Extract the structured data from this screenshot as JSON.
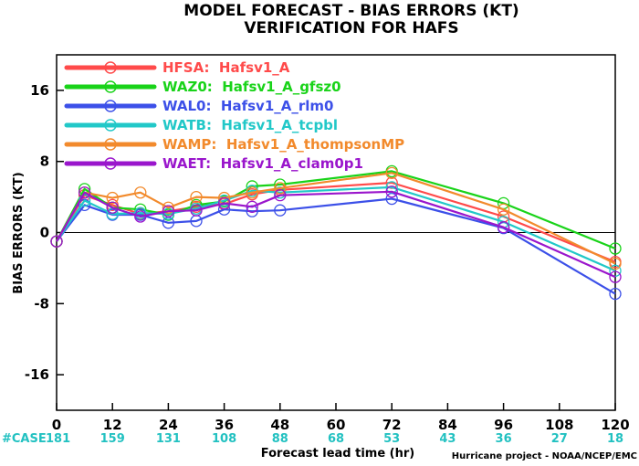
{
  "chart_data": {
    "type": "line",
    "title": "MODEL FORECAST - BIAS ERRORS (KT)",
    "subtitle": "VERIFICATION FOR HAFS",
    "xlabel": "Forecast lead time (hr)",
    "ylabel": "BIAS ERRORS (KT)",
    "x_ticks": [
      0,
      12,
      24,
      36,
      48,
      60,
      72,
      84,
      96,
      108,
      120
    ],
    "y_ticks": [
      -16,
      -8,
      0,
      8,
      16
    ],
    "xlim": [
      0,
      120
    ],
    "ylim": [
      -20,
      20
    ],
    "grid": false,
    "legend_position": "top-left",
    "case_label": "#CASE",
    "case_counts": [
      181,
      159,
      131,
      108,
      88,
      68,
      53,
      43,
      36,
      27,
      18
    ],
    "case_color": "#22c1c1",
    "credit": "Hurricane project - NOAA/NCEP/EMC",
    "series": [
      {
        "name": "HFSA:  Hafsv1_A",
        "color": "#ff4a4a",
        "x": [
          0,
          6,
          12,
          18,
          24,
          30,
          36,
          42,
          48,
          72,
          96,
          120
        ],
        "y": [
          -1.0,
          4.2,
          3.1,
          2.1,
          2.4,
          2.9,
          3.2,
          4.3,
          4.8,
          5.6,
          1.8,
          -3.3
        ]
      },
      {
        "name": "WAZ0:  Hafsv1_A_gfsz0",
        "color": "#19d319",
        "x": [
          0,
          6,
          12,
          18,
          24,
          30,
          36,
          42,
          48,
          72,
          96,
          120
        ],
        "y": [
          -1.0,
          4.9,
          2.8,
          2.6,
          2.0,
          3.1,
          3.5,
          5.2,
          5.4,
          6.9,
          3.3,
          -1.8
        ]
      },
      {
        "name": "WAL0:  Hafsv1_A_rlm0",
        "color": "#3c50e8",
        "x": [
          0,
          6,
          12,
          18,
          24,
          30,
          36,
          42,
          48,
          72,
          96,
          120
        ],
        "y": [
          -1.0,
          3.1,
          2.0,
          2.0,
          1.1,
          1.3,
          2.6,
          2.4,
          2.5,
          3.8,
          0.5,
          -6.9
        ]
      },
      {
        "name": "WATB:  Hafsv1_A_tcpbl",
        "color": "#22c8c8",
        "x": [
          0,
          6,
          12,
          18,
          24,
          30,
          36,
          42,
          48,
          72,
          96,
          120
        ],
        "y": [
          -1.0,
          3.6,
          2.1,
          2.2,
          2.1,
          2.7,
          3.6,
          4.7,
          4.5,
          5.1,
          1.2,
          -4.3
        ]
      },
      {
        "name": "WAMP:  Hafsv1_A_thompsonMP",
        "color": "#f28a2c",
        "x": [
          0,
          6,
          12,
          18,
          24,
          30,
          36,
          42,
          48,
          72,
          96,
          120
        ],
        "y": [
          -1.0,
          4.5,
          3.9,
          4.5,
          2.8,
          4.0,
          3.9,
          4.5,
          5.0,
          6.7,
          2.6,
          -3.5
        ]
      },
      {
        "name": "WAET:  Hafsv1_A_clam0p1",
        "color": "#9a16cc",
        "x": [
          0,
          6,
          12,
          18,
          24,
          30,
          36,
          42,
          48,
          72,
          96,
          120
        ],
        "y": [
          -1.0,
          4.5,
          2.8,
          1.8,
          2.4,
          2.5,
          3.3,
          2.9,
          4.2,
          4.6,
          0.6,
          -5.0
        ]
      }
    ]
  }
}
